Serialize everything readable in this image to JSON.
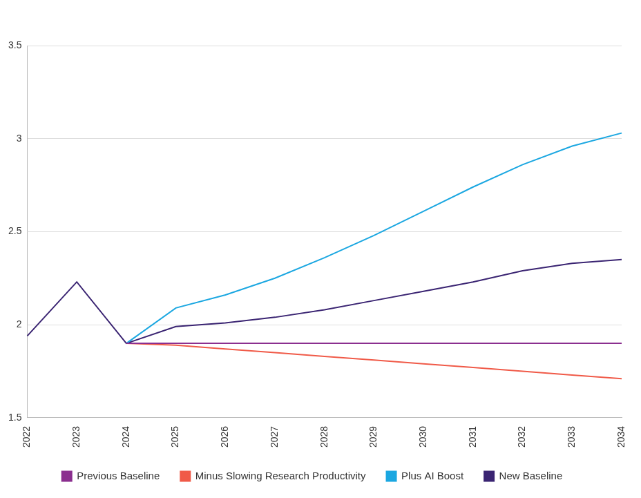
{
  "chart_data": {
    "type": "line",
    "categories": [
      "2022",
      "2023",
      "2024",
      "2025",
      "2026",
      "2027",
      "2028",
      "2029",
      "2030",
      "2031",
      "2032",
      "2033",
      "2034"
    ],
    "series": [
      {
        "name": "Previous Baseline",
        "color": "#8b2f8f",
        "values": [
          null,
          null,
          1.9,
          1.9,
          1.9,
          1.9,
          1.9,
          1.9,
          1.9,
          1.9,
          1.9,
          1.9,
          1.9
        ]
      },
      {
        "name": "Minus Slowing Research Productivity",
        "color": "#f05a48",
        "values": [
          null,
          null,
          1.9,
          1.89,
          1.87,
          1.85,
          1.83,
          1.81,
          1.79,
          1.77,
          1.75,
          1.73,
          1.71
        ]
      },
      {
        "name": "Plus AI Boost",
        "color": "#1ba7e1",
        "values": [
          null,
          null,
          1.9,
          2.09,
          2.16,
          2.25,
          2.36,
          2.48,
          2.61,
          2.74,
          2.86,
          2.96,
          3.03
        ]
      },
      {
        "name": "New Baseline",
        "color": "#3a2472",
        "values": [
          1.94,
          2.23,
          1.9,
          1.99,
          2.01,
          2.04,
          2.08,
          2.13,
          2.18,
          2.23,
          2.29,
          2.33,
          2.35
        ]
      }
    ],
    "ylim": [
      1.5,
      3.5
    ],
    "yticks": [
      1.5,
      2,
      2.5,
      3,
      3.5
    ],
    "grid": true,
    "legend": "bottom",
    "marker": "none",
    "line_style": "solid"
  }
}
